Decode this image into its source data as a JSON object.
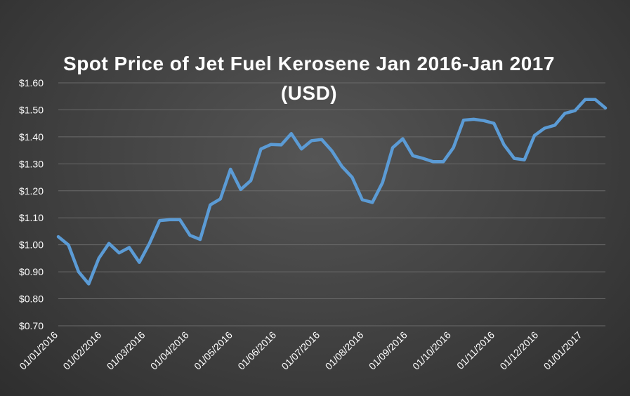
{
  "chart_data": {
    "type": "line",
    "title": "Spot Price of Jet Fuel Kerosene Jan 2016-Jan 2017 (USD)",
    "xlabel": "",
    "ylabel": "",
    "ylim": [
      0.7,
      1.6
    ],
    "y_ticks": [
      "$0.70",
      "$0.80",
      "$0.90",
      "$1.00",
      "$1.10",
      "$1.20",
      "$1.30",
      "$1.40",
      "$1.50",
      "$1.60"
    ],
    "y_tick_values": [
      0.7,
      0.8,
      0.9,
      1.0,
      1.1,
      1.2,
      1.3,
      1.4,
      1.5,
      1.6
    ],
    "x_tick_labels": [
      "01/01/2016",
      "01/02/2016",
      "01/03/2016",
      "01/04/2016",
      "01/05/2016",
      "01/06/2016",
      "01/07/2016",
      "01/08/2016",
      "01/09/2016",
      "01/10/2016",
      "01/11/2016",
      "01/12/2016",
      "01/01/2017"
    ],
    "grid": true,
    "line_color": "#5b9bd5",
    "series": [
      {
        "values": [
          1.03,
          1.0,
          0.9,
          0.855,
          0.95,
          1.005,
          0.97,
          0.99,
          0.935,
          1.005,
          1.09,
          1.093,
          1.093,
          1.035,
          1.02,
          1.148,
          1.17,
          1.28,
          1.205,
          1.238,
          1.355,
          1.372,
          1.37,
          1.412,
          1.355,
          1.386,
          1.39,
          1.348,
          1.29,
          1.25,
          1.167,
          1.157,
          1.23,
          1.36,
          1.393,
          1.33,
          1.32,
          1.308,
          1.308,
          1.36,
          1.462,
          1.465,
          1.46,
          1.45,
          1.37,
          1.32,
          1.315,
          1.405,
          1.432,
          1.443,
          1.487,
          1.497,
          1.538,
          1.538,
          1.507
        ]
      }
    ]
  }
}
